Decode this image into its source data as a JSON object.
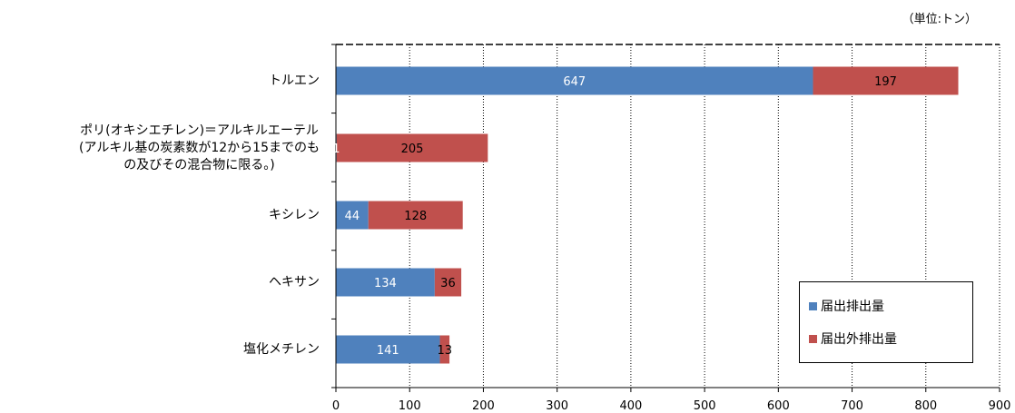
{
  "unit_note": "（単位:トン）",
  "colors": {
    "reported": "#4f81bd",
    "unreported": "#c0504d"
  },
  "chart_data": {
    "type": "bar",
    "orientation": "horizontal",
    "stacked": true,
    "categories": [
      [
        "トルエン"
      ],
      [
        "ポリ(オキシエチレン)＝アルキルエーテル",
        "(アルキル基の炭素数が12から15までのも",
        "の及びその混合物に限る。)"
      ],
      [
        "キシレン"
      ],
      [
        "ヘキサン"
      ],
      [
        "塩化メチレン"
      ]
    ],
    "series": [
      {
        "name": "届出排出量",
        "values": [
          647,
          1,
          44,
          134,
          141
        ]
      },
      {
        "name": "届出外排出量",
        "values": [
          197,
          205,
          128,
          36,
          13
        ]
      }
    ],
    "xlim": [
      0,
      900
    ],
    "xticks": [
      0,
      100,
      200,
      300,
      400,
      500,
      600,
      700,
      800,
      900
    ],
    "grid": "vertical-dotted",
    "legend_position": "bottom-right"
  }
}
